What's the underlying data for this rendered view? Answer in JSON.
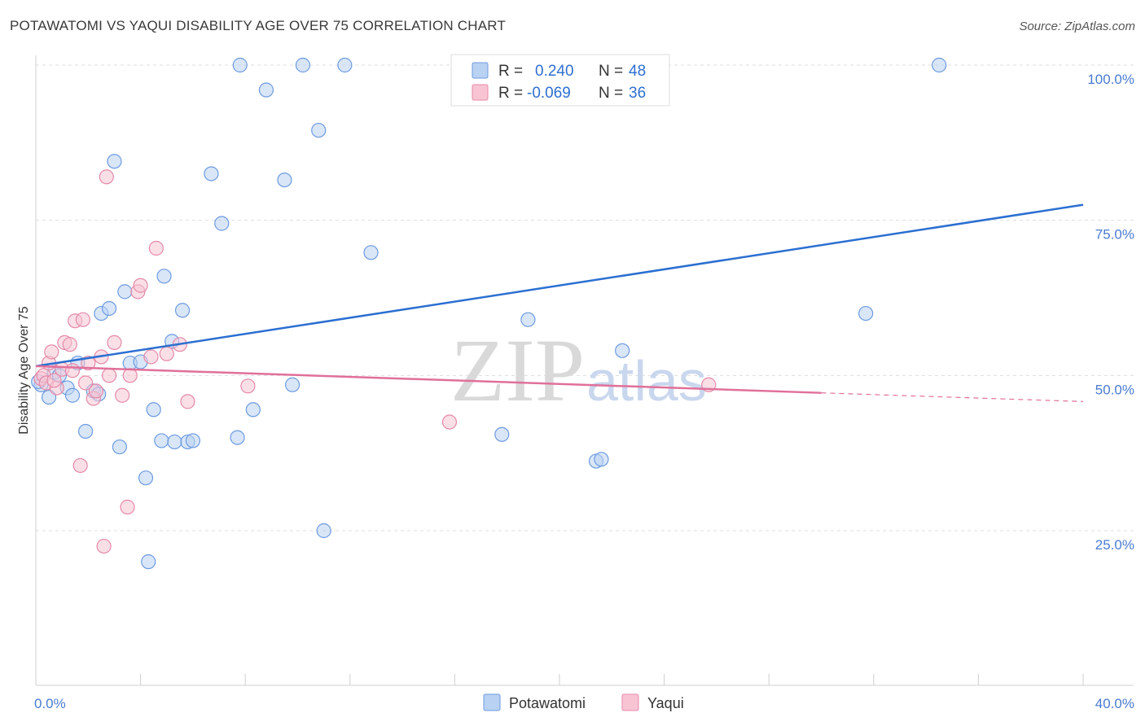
{
  "header": {
    "title": "POTAWATOMI VS YAQUI DISABILITY AGE OVER 75 CORRELATION CHART",
    "source": "Source: ZipAtlas.com"
  },
  "watermark": {
    "zip": "ZIP",
    "atlas": "atlas"
  },
  "legend": {
    "rows": [
      {
        "r_label": "R =",
        "r_value": "0.240",
        "n_label": "N =",
        "n_value": "48"
      },
      {
        "r_label": "R =",
        "r_value": "-0.069",
        "n_label": "N =",
        "n_value": "36"
      }
    ]
  },
  "bottom_legend": {
    "series1": "Potawatomi",
    "series2": "Yaqui"
  },
  "colors": {
    "potawatomi_fill": "#b9d1f2",
    "potawatomi_stroke": "#6d9be0",
    "potawatomi_line": "#2b6fd1",
    "yaqui_fill": "#f8c4d4",
    "yaqui_stroke": "#e48aa8",
    "yaqui_line": "#e0709a",
    "grid": "#dddddd",
    "tick_label": "#4a7bd0"
  },
  "chart_data": {
    "type": "scatter",
    "title": "POTAWATOMI VS YAQUI DISABILITY AGE OVER 75 CORRELATION CHART",
    "xlabel": "",
    "ylabel": "Disability Age Over 75",
    "xlim": [
      0,
      40
    ],
    "ylim": [
      0,
      105
    ],
    "x_tick_labels": [
      "0.0%",
      "40.0%"
    ],
    "y_ticks": [
      25,
      50,
      75,
      100
    ],
    "y_tick_labels": [
      "25.0%",
      "50.0%",
      "75.0%",
      "100.0%"
    ],
    "grid": true,
    "legend_position": "top-center",
    "series": [
      {
        "name": "Potawatomi",
        "r": 0.24,
        "n": 48,
        "trend": {
          "x": [
            0,
            40
          ],
          "y": [
            51.5,
            77.5
          ],
          "dashed_from": null
        },
        "points": [
          [
            0.2,
            48.5
          ],
          [
            0.5,
            46.5
          ],
          [
            0.7,
            50.5
          ],
          [
            0.9,
            50.0
          ],
          [
            1.2,
            48.0
          ],
          [
            1.4,
            46.8
          ],
          [
            1.6,
            52.0
          ],
          [
            1.9,
            41.0
          ],
          [
            2.2,
            47.5
          ],
          [
            2.4,
            47.0
          ],
          [
            2.5,
            60.0
          ],
          [
            2.8,
            60.8
          ],
          [
            3.0,
            84.5
          ],
          [
            3.2,
            38.5
          ],
          [
            3.4,
            63.5
          ],
          [
            3.6,
            52.0
          ],
          [
            4.0,
            52.2
          ],
          [
            4.2,
            33.5
          ],
          [
            4.3,
            20.0
          ],
          [
            4.5,
            44.5
          ],
          [
            4.8,
            39.5
          ],
          [
            4.9,
            66.0
          ],
          [
            5.2,
            55.5
          ],
          [
            5.3,
            39.3
          ],
          [
            5.6,
            60.5
          ],
          [
            5.8,
            39.3
          ],
          [
            6.0,
            39.5
          ],
          [
            6.7,
            82.5
          ],
          [
            7.1,
            74.5
          ],
          [
            7.8,
            100.0
          ],
          [
            7.7,
            40.0
          ],
          [
            8.3,
            44.5
          ],
          [
            8.8,
            96.0
          ],
          [
            9.5,
            81.5
          ],
          [
            9.8,
            48.5
          ],
          [
            10.2,
            100.0
          ],
          [
            10.8,
            89.5
          ],
          [
            11.0,
            25.0
          ],
          [
            11.8,
            100.0
          ],
          [
            12.8,
            69.8
          ],
          [
            17.8,
            40.5
          ],
          [
            18.8,
            59.0
          ],
          [
            21.4,
            36.2
          ],
          [
            21.6,
            36.5
          ],
          [
            22.4,
            54.0
          ],
          [
            31.7,
            60.0
          ],
          [
            34.5,
            100.0
          ],
          [
            0.1,
            49.0
          ]
        ]
      },
      {
        "name": "Yaqui",
        "r": -0.069,
        "n": 36,
        "trend": {
          "x": [
            0,
            30
          ],
          "y": [
            51.5,
            47.2
          ],
          "dashed_from": 30,
          "dashed_to": [
            40,
            45.8
          ]
        },
        "points": [
          [
            0.2,
            49.5
          ],
          [
            0.3,
            50.0
          ],
          [
            0.4,
            48.8
          ],
          [
            0.5,
            52.0
          ],
          [
            0.6,
            53.8
          ],
          [
            0.8,
            48.0
          ],
          [
            1.0,
            51.0
          ],
          [
            1.1,
            55.3
          ],
          [
            1.3,
            55.0
          ],
          [
            1.5,
            58.8
          ],
          [
            1.7,
            35.5
          ],
          [
            1.8,
            59.0
          ],
          [
            1.9,
            48.8
          ],
          [
            2.0,
            52.0
          ],
          [
            2.2,
            46.3
          ],
          [
            2.5,
            53.0
          ],
          [
            2.6,
            22.5
          ],
          [
            2.7,
            82.0
          ],
          [
            2.8,
            50.0
          ],
          [
            3.0,
            55.3
          ],
          [
            3.3,
            46.8
          ],
          [
            3.5,
            28.8
          ],
          [
            3.6,
            50.0
          ],
          [
            3.9,
            63.5
          ],
          [
            4.0,
            64.5
          ],
          [
            4.4,
            53.0
          ],
          [
            4.6,
            70.5
          ],
          [
            5.0,
            53.5
          ],
          [
            5.5,
            55.0
          ],
          [
            5.8,
            45.8
          ],
          [
            8.1,
            48.3
          ],
          [
            15.8,
            42.5
          ],
          [
            25.7,
            48.5
          ],
          [
            0.7,
            49.2
          ],
          [
            1.4,
            50.8
          ],
          [
            2.3,
            47.5
          ]
        ]
      }
    ]
  }
}
